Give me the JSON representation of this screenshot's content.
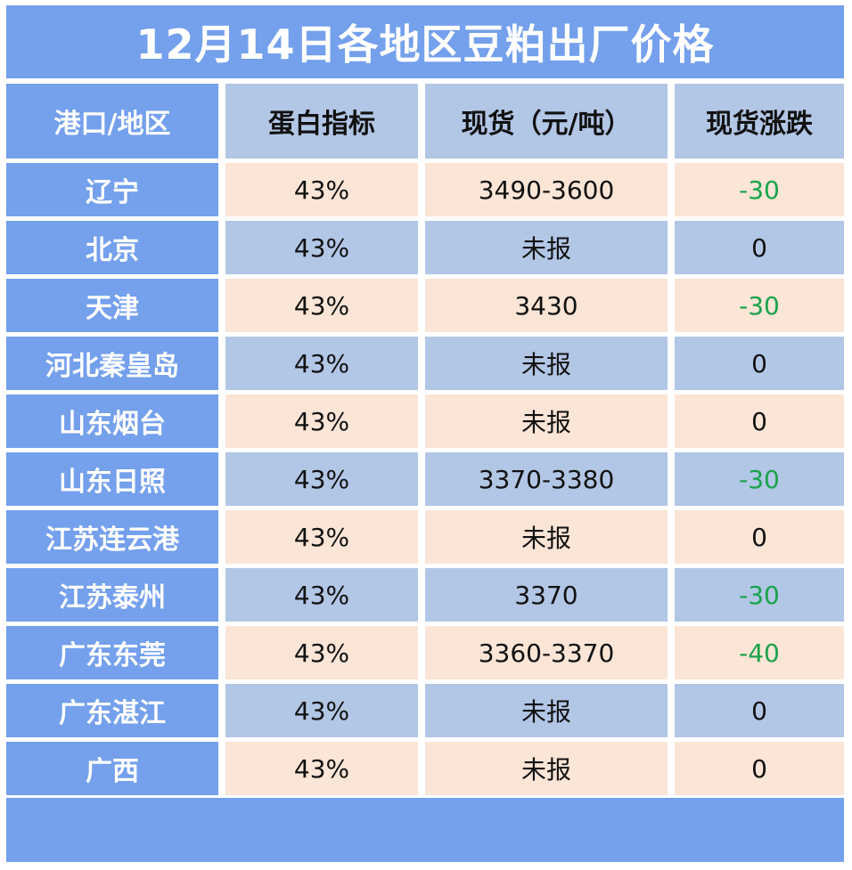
{
  "title": "12月14日各地区豆粕出厂价格",
  "headers": {
    "region": "港口/地区",
    "protein": "蛋白指标",
    "spot": "现货（元/吨）",
    "change": "现货涨跌"
  },
  "rows": [
    {
      "region": "辽宁",
      "protein": "43%",
      "spot": "3490-3600",
      "change": "-30"
    },
    {
      "region": "北京",
      "protein": "43%",
      "spot": "未报",
      "change": "0"
    },
    {
      "region": "天津",
      "protein": "43%",
      "spot": "3430",
      "change": "-30"
    },
    {
      "region": "河北秦皇岛",
      "protein": "43%",
      "spot": "未报",
      "change": "0"
    },
    {
      "region": "山东烟台",
      "protein": "43%",
      "spot": "未报",
      "change": "0"
    },
    {
      "region": "山东日照",
      "protein": "43%",
      "spot": "3370-3380",
      "change": "-30"
    },
    {
      "region": "江苏连云港",
      "protein": "43%",
      "spot": "未报",
      "change": "0"
    },
    {
      "region": "江苏泰州",
      "protein": "43%",
      "spot": "3370",
      "change": "-30"
    },
    {
      "region": "广东东莞",
      "protein": "43%",
      "spot": "3360-3370",
      "change": "-40"
    },
    {
      "region": "广东湛江",
      "protein": "43%",
      "spot": "未报",
      "change": "0"
    },
    {
      "region": "广西",
      "protein": "43%",
      "spot": "未报",
      "change": "0"
    }
  ],
  "colors": {
    "header_blue": "#74a0ec",
    "light_blue": "#b2c6e6",
    "peach": "#fbe5d6",
    "negative_change": "#1aa34a"
  }
}
